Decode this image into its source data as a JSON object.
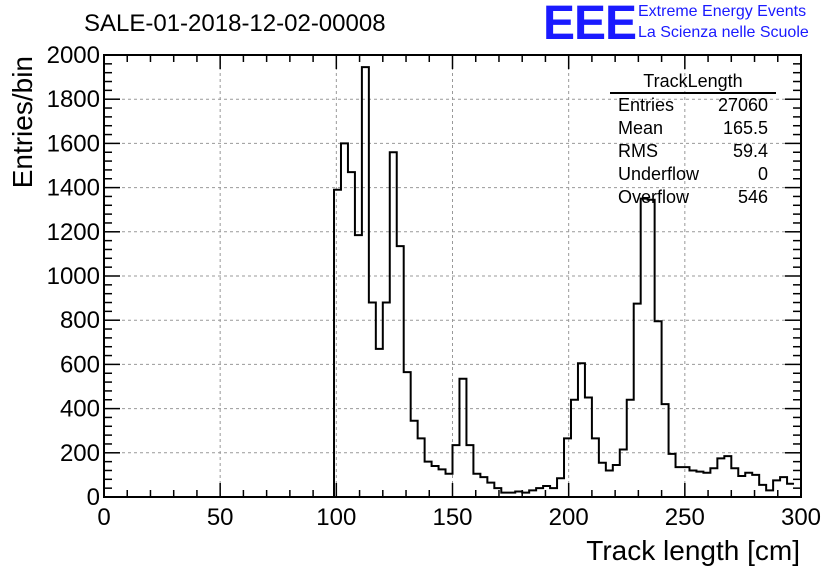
{
  "header": {
    "title": "SALE-01-2018-12-02-00008",
    "logo_text": "EEE",
    "logo_line1": "Extreme Energy Events",
    "logo_line2": "La Scienza nelle Scuole"
  },
  "stats_box": {
    "name": "TrackLength",
    "rows": [
      {
        "label": "Entries",
        "value": "27060"
      },
      {
        "label": "Mean",
        "value": "165.5"
      },
      {
        "label": "RMS",
        "value": "59.4"
      },
      {
        "label": "Underflow",
        "value": "0"
      },
      {
        "label": "Overflow",
        "value": "546"
      }
    ]
  },
  "chart_data": {
    "type": "histogram",
    "xlabel": "Track length [cm]",
    "ylabel": "Entries/bin",
    "xlim": [
      0,
      300
    ],
    "ylim": [
      0,
      2000
    ],
    "bin_width": 3,
    "grid": true,
    "x_ticks": [
      0,
      50,
      100,
      150,
      200,
      250,
      300
    ],
    "y_ticks": [
      0,
      200,
      400,
      600,
      800,
      1000,
      1200,
      1400,
      1600,
      1800,
      2000
    ],
    "bin_edges_start": 99,
    "values": [
      1390,
      1600,
      1470,
      1185,
      1945,
      880,
      670,
      880,
      1560,
      1135,
      565,
      345,
      265,
      160,
      140,
      125,
      105,
      235,
      535,
      235,
      105,
      90,
      65,
      40,
      20,
      20,
      25,
      20,
      30,
      40,
      50,
      40,
      85,
      265,
      440,
      605,
      450,
      265,
      155,
      120,
      145,
      215,
      440,
      875,
      1350,
      1345,
      795,
      420,
      195,
      135,
      135,
      120,
      115,
      110,
      130,
      175,
      185,
      130,
      95,
      110,
      100,
      55,
      30,
      75,
      90,
      60
    ]
  },
  "colors": {
    "line": "#000000",
    "grid": "#999999",
    "logo": "#1a1aff"
  }
}
